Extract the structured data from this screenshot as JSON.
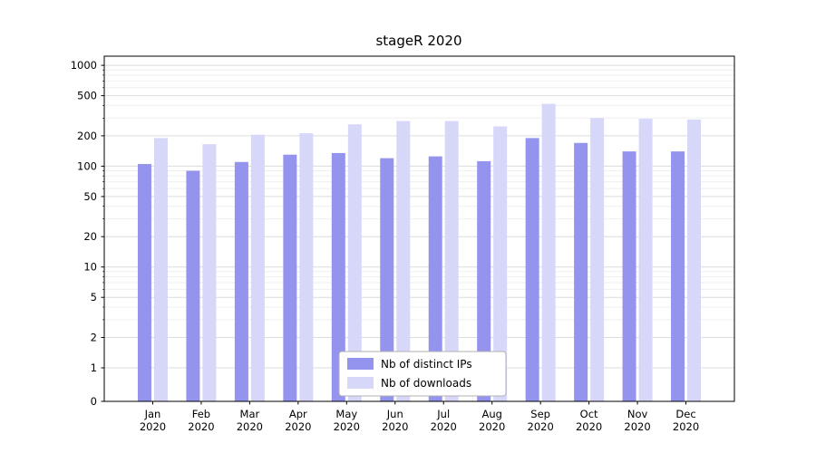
{
  "chart_data": {
    "type": "bar",
    "title": "stageR 2020",
    "yscale": "symlog",
    "grid": true,
    "legend_position": "lower center",
    "categories": [
      "Jan",
      "Feb",
      "Mar",
      "Apr",
      "May",
      "Jun",
      "Jul",
      "Aug",
      "Sep",
      "Oct",
      "Nov",
      "Dec"
    ],
    "category_year": "2020",
    "yticks": [
      0,
      1,
      2,
      5,
      10,
      20,
      50,
      100,
      200,
      500,
      1000
    ],
    "ylim": [
      0,
      1000
    ],
    "series": [
      {
        "name": "Nb of distinct IPs",
        "color": "#9494ef",
        "values": [
          105,
          90,
          110,
          130,
          135,
          120,
          125,
          112,
          190,
          170,
          140,
          140
        ]
      },
      {
        "name": "Nb of downloads",
        "color": "#d7d7f9",
        "values": [
          190,
          165,
          205,
          212,
          260,
          280,
          280,
          248,
          415,
          300,
          295,
          290
        ]
      }
    ],
    "colors": {
      "major_grid": "#dcdcdc",
      "minor_grid": "#efefef",
      "spine": "#000000",
      "legend_border": "#b0b0b0"
    }
  }
}
